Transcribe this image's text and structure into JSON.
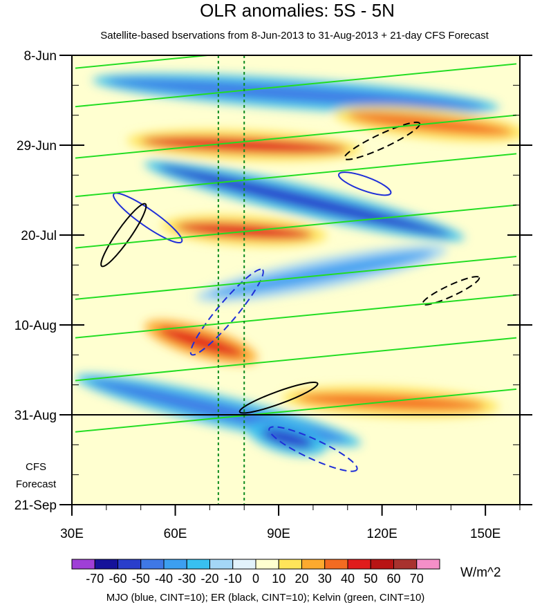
{
  "chart_data": {
    "type": "heatmap",
    "title": "OLR anomalies: 5S - 5N",
    "subtitle": "Satellite-based bservations from 8-Jun-2013 to 31-Aug-2013 + 21-day CFS Forecast",
    "x_axis": {
      "range": [
        30,
        160
      ],
      "ticks": [
        {
          "value": 30,
          "label": "30E"
        },
        {
          "value": 60,
          "label": "60E"
        },
        {
          "value": 90,
          "label": "90E"
        },
        {
          "value": 120,
          "label": "120E"
        },
        {
          "value": 150,
          "label": "150E"
        }
      ]
    },
    "y_axis": {
      "range_days": [
        0,
        105
      ],
      "ticks": [
        {
          "day": 0,
          "label": "8-Jun"
        },
        {
          "day": 21,
          "label": "29-Jun"
        },
        {
          "day": 42,
          "label": "20-Jul"
        },
        {
          "day": 63,
          "label": "10-Aug"
        },
        {
          "day": 84,
          "label": "31-Aug"
        },
        {
          "day": 105,
          "label": "21-Sep"
        }
      ]
    },
    "observation_end_day": 84,
    "forecast_label": [
      "CFS",
      "Forecast"
    ],
    "reference_longitudes": [
      72.5,
      80
    ],
    "colorbar": {
      "levels": [
        "-70",
        "-60",
        "-50",
        "-40",
        "-30",
        "-20",
        "-10",
        "0",
        "10",
        "20",
        "30",
        "40",
        "50",
        "60",
        "70"
      ],
      "colors": [
        "#9f3fd6",
        "#15129a",
        "#2a3ecb",
        "#3f78e6",
        "#3c9ff0",
        "#38c0f0",
        "#a4d6f6",
        "#e2f2fb",
        "#ffffd0",
        "#ffe45a",
        "#fdaa2e",
        "#f36b21",
        "#e01c1c",
        "#b81414",
        "#a8322e",
        "#f48fc8"
      ],
      "units": "W/m^2"
    },
    "anomaly_features": [
      {
        "sign": "negative",
        "strength": -45,
        "lon_start": 40,
        "day_start": 6,
        "lon_end": 150,
        "day_end": 12
      },
      {
        "sign": "positive",
        "strength": 40,
        "lon_start": 50,
        "day_start": 20,
        "lon_end": 110,
        "day_end": 22
      },
      {
        "sign": "positive",
        "strength": 30,
        "lon_start": 110,
        "day_start": 14,
        "lon_end": 158,
        "day_end": 18
      },
      {
        "sign": "negative",
        "strength": -55,
        "lon_start": 55,
        "day_start": 26,
        "lon_end": 140,
        "day_end": 42
      },
      {
        "sign": "positive",
        "strength": 40,
        "lon_start": 60,
        "day_start": 40,
        "lon_end": 100,
        "day_end": 42
      },
      {
        "sign": "negative",
        "strength": -40,
        "lon_start": 70,
        "day_start": 56,
        "lon_end": 135,
        "day_end": 46
      },
      {
        "sign": "positive",
        "strength": 45,
        "lon_start": 55,
        "day_start": 64,
        "lon_end": 80,
        "day_end": 70
      },
      {
        "sign": "negative",
        "strength": -45,
        "lon_start": 35,
        "day_start": 76,
        "lon_end": 110,
        "day_end": 90
      },
      {
        "sign": "positive",
        "strength": 30,
        "lon_start": 95,
        "day_start": 80,
        "lon_end": 150,
        "day_end": 82
      },
      {
        "sign": "negative",
        "strength": -60,
        "lon_start": 85,
        "day_start": 88,
        "lon_end": 100,
        "day_end": 91
      }
    ],
    "contour_groups": [
      {
        "name": "MJO",
        "color": "blue",
        "cint": 10
      },
      {
        "name": "ER",
        "color": "black",
        "cint": 10
      },
      {
        "name": "Kelvin",
        "color": "green",
        "cint": 10
      }
    ],
    "footnote": "MJO (blue, CINT=10); ER (black, CINT=10); Kelvin (green, CINT=10)"
  }
}
